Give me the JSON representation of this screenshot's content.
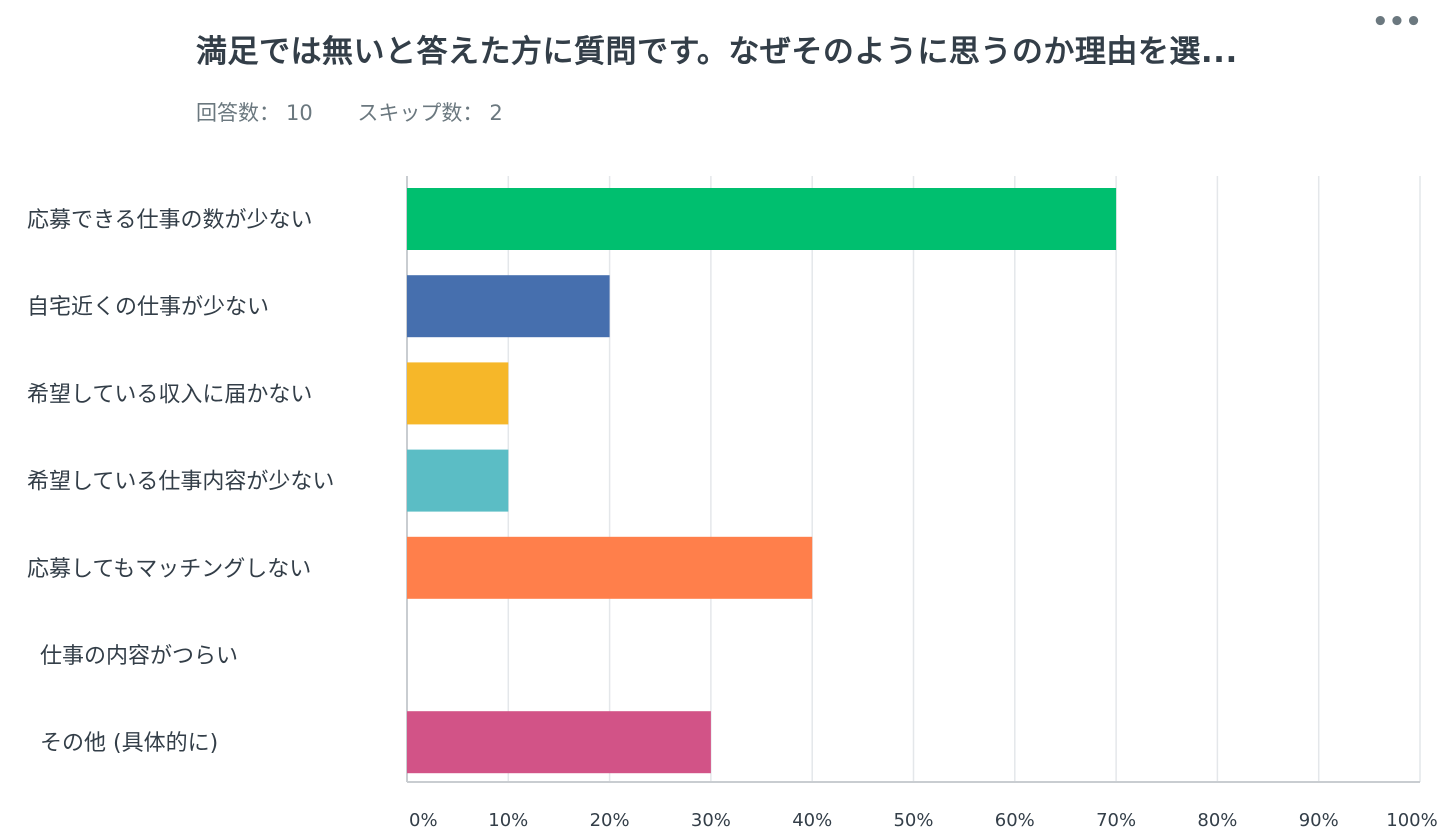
{
  "header": {
    "title": "満足では無いと答えた方に質問です。なぜそのように思うのか理由を選...",
    "more_label": "•••"
  },
  "stats": {
    "answered_label": "回答数：",
    "answered_value": "10",
    "skipped_label": "スキップ数：",
    "skipped_value": "2"
  },
  "chart_data": {
    "type": "bar",
    "orientation": "horizontal",
    "categories": [
      "応募できる仕事の数が少ない",
      "自宅近くの仕事が少ない",
      "希望している収入に届かない",
      "希望している仕事内容が少ない",
      "応募してもマッチングしない",
      "仕事の内容がつらい",
      "その他 (具体的に)"
    ],
    "values": [
      70,
      20,
      10,
      10,
      40,
      0,
      30
    ],
    "colors": [
      "#00bf6f",
      "#466fae",
      "#f6b729",
      "#5bbdc5",
      "#ff7f4b",
      "#9b72b4",
      "#d25387"
    ],
    "xlim": [
      0,
      100
    ],
    "xticks": [
      "0%",
      "10%",
      "20%",
      "30%",
      "40%",
      "50%",
      "60%",
      "70%",
      "80%",
      "90%",
      "100%"
    ],
    "grid": true,
    "legend": "none"
  }
}
